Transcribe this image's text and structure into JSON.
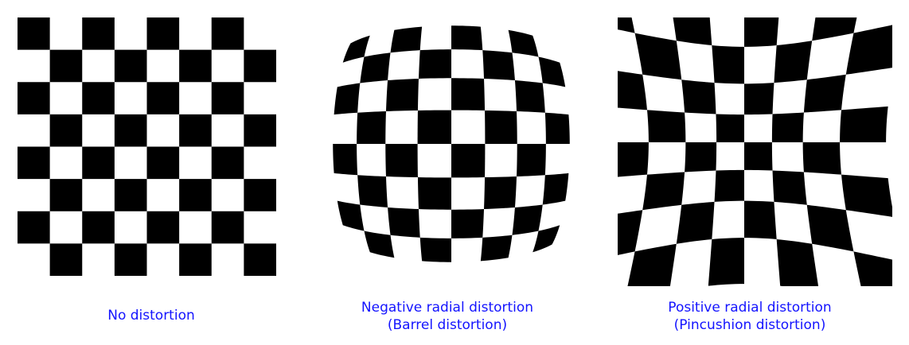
{
  "figure": {
    "panels": [
      {
        "distortion": "none",
        "caption_lines": [
          "No distortion"
        ]
      },
      {
        "distortion": "barrel",
        "caption_lines": [
          "Negative radial distortion",
          "(Barrel distortion)"
        ]
      },
      {
        "distortion": "pincushion",
        "caption_lines": [
          "Positive radial distortion",
          "(Pincushion distortion)"
        ]
      }
    ],
    "checkerboard": {
      "rows": 8,
      "cols": 8
    },
    "colors": {
      "square": "#000000",
      "background": "#ffffff",
      "caption": "#1414ff"
    }
  }
}
